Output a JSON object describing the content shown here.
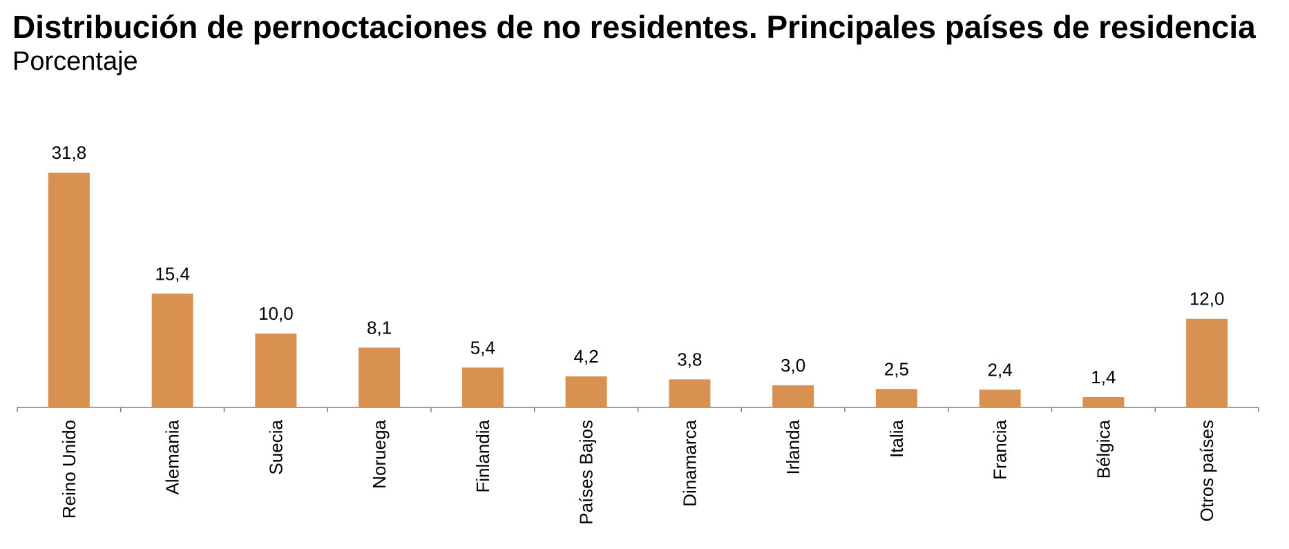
{
  "title": "Distribución de pernoctaciones de no residentes. Principales países de residencia",
  "subtitle": "Porcentaje",
  "colors": {
    "bar": "#D89150",
    "axis": "#808080"
  },
  "chart_data": {
    "type": "bar",
    "title": "Distribución de pernoctaciones de no residentes. Principales países de residencia",
    "subtitle": "Porcentaje",
    "xlabel": "",
    "ylabel": "",
    "ylim": [
      0,
      35
    ],
    "grid": false,
    "legend": "none",
    "categories": [
      "Reino Unido",
      "Alemania",
      "Suecia",
      "Noruega",
      "Finlandia",
      "Países Bajos",
      "Dinamarca",
      "Irlanda",
      "Italia",
      "Francia",
      "Bélgica",
      "Otros países"
    ],
    "values": [
      31.8,
      15.4,
      10.0,
      8.1,
      5.4,
      4.2,
      3.8,
      3.0,
      2.5,
      2.4,
      1.4,
      12.0
    ],
    "data_labels": [
      "31,8",
      "15,4",
      "10,0",
      "8,1",
      "5,4",
      "4,2",
      "3,8",
      "3,0",
      "2,5",
      "2,4",
      "1,4",
      "12,0"
    ]
  }
}
